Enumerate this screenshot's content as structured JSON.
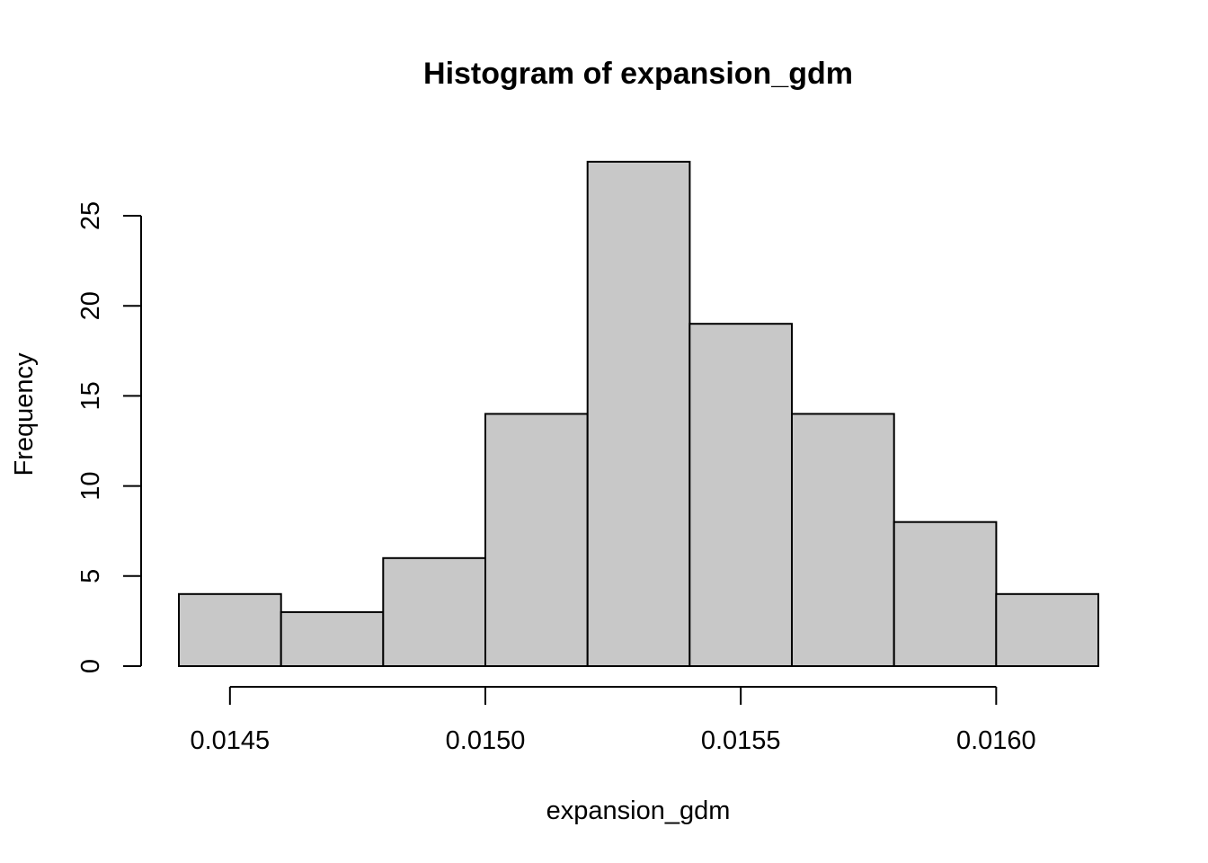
{
  "chart_data": {
    "type": "bar",
    "subtype": "histogram",
    "title": "Histogram of expansion_gdm",
    "xlabel": "expansion_gdm",
    "ylabel": "Frequency",
    "bins": [
      {
        "start": 0.0144,
        "end": 0.0146,
        "count": 4
      },
      {
        "start": 0.0146,
        "end": 0.0148,
        "count": 3
      },
      {
        "start": 0.0148,
        "end": 0.015,
        "count": 6
      },
      {
        "start": 0.015,
        "end": 0.0152,
        "count": 14
      },
      {
        "start": 0.0152,
        "end": 0.0154,
        "count": 28
      },
      {
        "start": 0.0154,
        "end": 0.0156,
        "count": 19
      },
      {
        "start": 0.0156,
        "end": 0.0158,
        "count": 14
      },
      {
        "start": 0.0158,
        "end": 0.016,
        "count": 8
      },
      {
        "start": 0.016,
        "end": 0.0162,
        "count": 4
      }
    ],
    "xlim": [
      0.0144,
      0.0162
    ],
    "ylim": [
      0,
      28
    ],
    "x_ticks": [
      0.0145,
      0.015,
      0.0155,
      0.016
    ],
    "x_tick_labels": [
      "0.0145",
      "0.0150",
      "0.0155",
      "0.0160"
    ],
    "y_ticks": [
      0,
      5,
      10,
      15,
      20,
      25
    ],
    "y_tick_labels": [
      "0",
      "5",
      "10",
      "15",
      "20",
      "25"
    ],
    "bar_color": "#c8c8c8",
    "edge_color": "#000000",
    "grid": false,
    "legend": "none"
  }
}
